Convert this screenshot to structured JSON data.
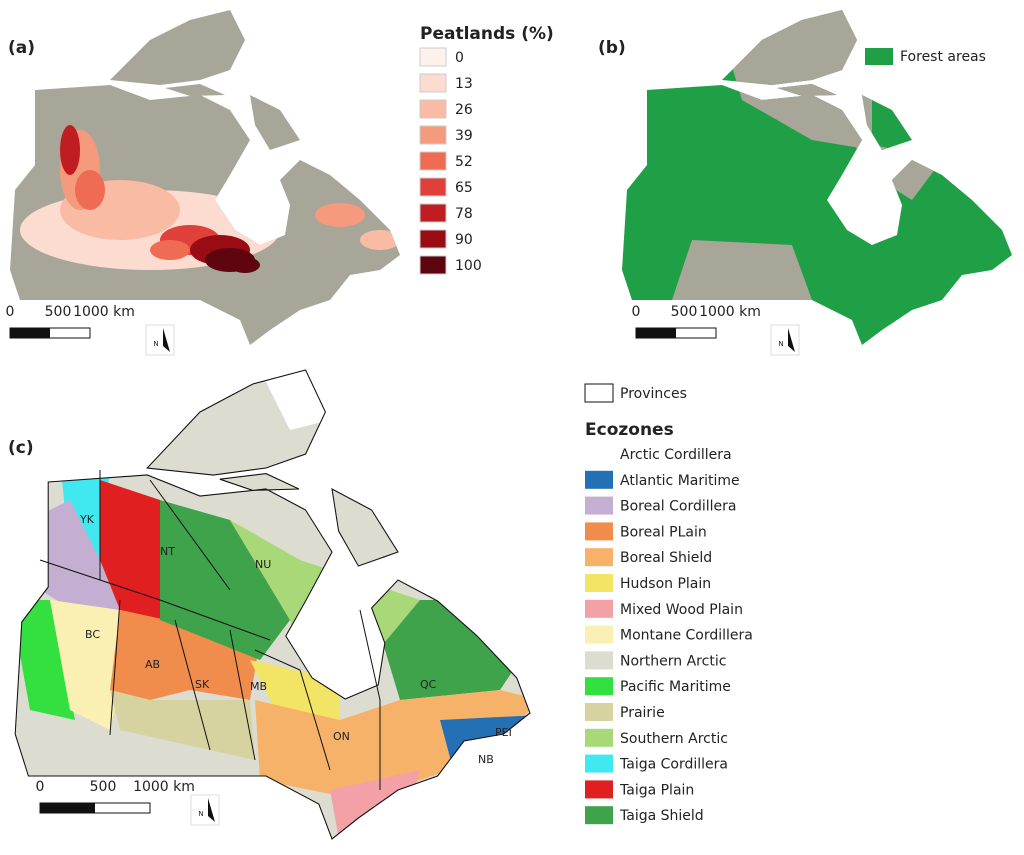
{
  "panel_a": {
    "label": "(a)",
    "legend_title": "Peatlands (%)",
    "legend": [
      {
        "value": 0,
        "color": "#fdf1ec"
      },
      {
        "value": 13,
        "color": "#fcdcd0"
      },
      {
        "value": 26,
        "color": "#f9bba4"
      },
      {
        "value": 39,
        "color": "#f59a7c"
      },
      {
        "value": 52,
        "color": "#ef6c52"
      },
      {
        "value": 65,
        "color": "#e0403a"
      },
      {
        "value": 78,
        "color": "#c01d23"
      },
      {
        "value": 90,
        "color": "#9a0c14"
      },
      {
        "value": 100,
        "color": "#5e0510"
      }
    ],
    "scale": [
      "0",
      "500",
      "1000 km"
    ],
    "north": "N"
  },
  "panel_b": {
    "label": "(b)",
    "legend": {
      "name": "Forest areas",
      "color": "#1fa046"
    },
    "scale": [
      "0",
      "500",
      "1000 km"
    ],
    "north": "N"
  },
  "panel_c": {
    "label": "(c)",
    "provinces_legend": "Provinces",
    "ecozones_title": "Ecozones",
    "ecozones": [
      {
        "name": "Arctic Cordillera",
        "color": "#ffffff"
      },
      {
        "name": "Atlantic Maritime",
        "color": "#2470b5"
      },
      {
        "name": "Boreal Cordillera",
        "color": "#c4aed2"
      },
      {
        "name": "Boreal PLain",
        "color": "#f08d4c"
      },
      {
        "name": "Boreal Shield",
        "color": "#f7b26a"
      },
      {
        "name": "Hudson Plain",
        "color": "#f2e565"
      },
      {
        "name": "Mixed Wood Plain",
        "color": "#f4a0a7"
      },
      {
        "name": "Montane Cordillera",
        "color": "#fbf0b4"
      },
      {
        "name": "Northern Arctic",
        "color": "#dcdcd0"
      },
      {
        "name": "Pacific Maritime",
        "color": "#33e040"
      },
      {
        "name": "Prairie",
        "color": "#d7d3a0"
      },
      {
        "name": "Southern Arctic",
        "color": "#a8d878"
      },
      {
        "name": "Taiga Cordillera",
        "color": "#40e8f0"
      },
      {
        "name": "Taiga Plain",
        "color": "#e02020"
      },
      {
        "name": "Taiga Shield",
        "color": "#3fa34b"
      }
    ],
    "province_labels": [
      "YK",
      "NT",
      "NU",
      "BC",
      "AB",
      "SK",
      "MB",
      "ON",
      "QC",
      "NB",
      "PEI"
    ],
    "scale": [
      "0",
      "500",
      "1000 km"
    ],
    "north": "N"
  }
}
